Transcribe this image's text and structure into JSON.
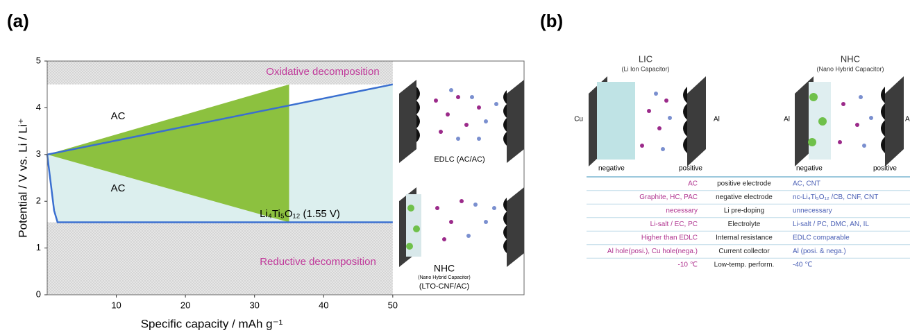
{
  "chart_data": {
    "type": "line",
    "panel_label": "(a)",
    "y_label": "Potential / V vs. Li / Li⁺",
    "x_label": "Specific capacity / mAh g⁻¹",
    "xlim": [
      0,
      69
    ],
    "ylim": [
      0,
      5
    ],
    "xticks": [
      10,
      20,
      30,
      40,
      50
    ],
    "yticks": [
      0,
      1,
      2,
      3,
      4,
      5
    ],
    "series": [
      {
        "color": "#3a6fd0",
        "x": [
          0,
          50
        ],
        "values": [
          3,
          4.5
        ]
      },
      {
        "color": "#3a6fd0",
        "x": [
          0,
          1,
          1.5,
          50
        ],
        "values": [
          3,
          1.8,
          1.55,
          1.55
        ]
      }
    ],
    "wedge": {
      "color": "#8cc13f",
      "x": [
        0,
        35,
        35
      ],
      "values": [
        3,
        4.5,
        1.55
      ]
    },
    "decomposition_regions": [
      {
        "xlim": [
          0,
          50
        ],
        "ylim": [
          4.5,
          5
        ]
      },
      {
        "xlim": [
          0,
          50
        ],
        "ylim": [
          0,
          1.55
        ]
      }
    ],
    "annotations": [
      "Oxidative decomposition",
      "AC",
      "AC",
      "Li₄Ti₅O₁₂ (1.55 V)",
      "Reductive decomposition"
    ],
    "insets": [
      "EDLC (AC/AC)",
      "NHC",
      "(Nano Hybrid Capacitor)",
      "(LTO-CNF/AC)"
    ]
  },
  "panel_b": {
    "panel_label": "(b)",
    "lic": {
      "title": "LIC",
      "subtitle": "(Li Ion Capacitor)",
      "left": "Cu",
      "right": "Al",
      "negative": "negative",
      "positive": "positive"
    },
    "nhc": {
      "title": "NHC",
      "subtitle": "(Nano Hybrid Capacitor)",
      "left": "Al",
      "right": "A",
      "negative": "negative",
      "positive": "positive"
    },
    "table": {
      "rows": [
        [
          "AC",
          "positive electrode",
          "AC, CNT"
        ],
        [
          "Graphite, HC, PAC",
          "negative electrode",
          "nc-Li₄Ti₅O₁₂ /CB, CNF, CNT"
        ],
        [
          "necessary",
          "Li pre-doping",
          "unnecessary"
        ],
        [
          "Li-salt / EC, PC",
          "Electrolyte",
          "Li-salt / PC, DMC, AN, IL"
        ],
        [
          "Higher than EDLC",
          "Internal resistance",
          "EDLC comparable"
        ],
        [
          "Al hole(posi.), Cu hole(nega.)",
          "Current collector",
          "Al (posi. & nega.)"
        ],
        [
          "-10 ℃",
          "Low-temp. perform.",
          "-40 ℃"
        ]
      ]
    }
  }
}
